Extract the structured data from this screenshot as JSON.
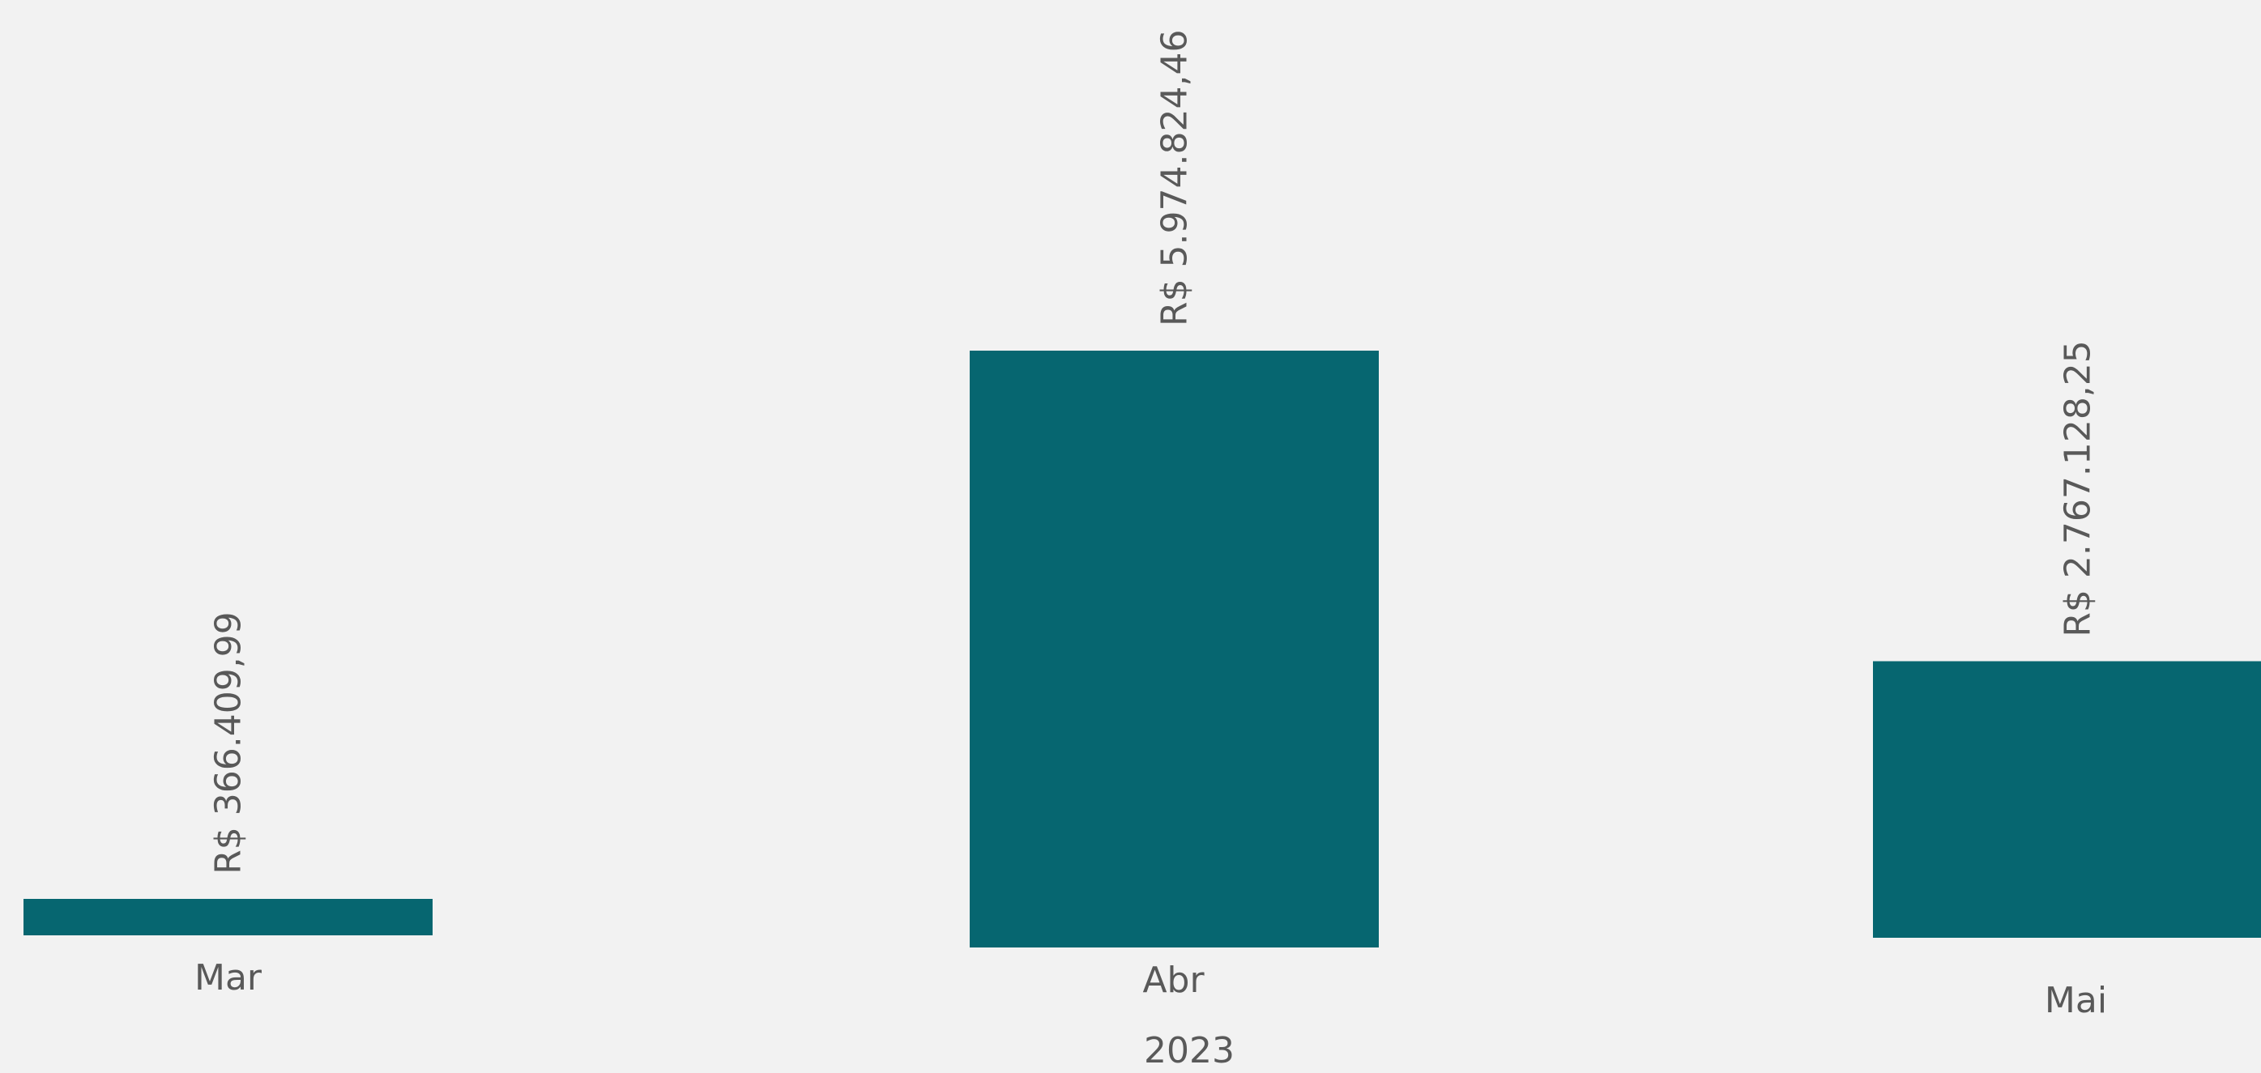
{
  "chart_data": {
    "type": "bar",
    "categories": [
      "Mar",
      "Abr",
      "Mai"
    ],
    "group_label": "2023",
    "values": [
      366409.99,
      5974824.46,
      2767128.25
    ],
    "data_labels": [
      "R$ 366.409,99",
      "R$ 5.974.824,46",
      "R$ 2.767.128,25"
    ],
    "bar_color": "#066670",
    "text_color": "#595959",
    "background": "#f2f2f2",
    "grid": false,
    "legend": "none",
    "ylim": [
      0,
      6000000
    ]
  }
}
